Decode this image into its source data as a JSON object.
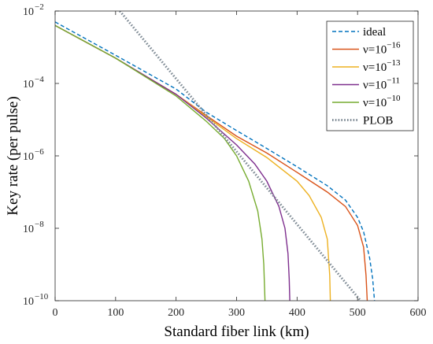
{
  "chart_data": {
    "type": "line",
    "title": "",
    "xlabel": "Standard fiber link (km)",
    "ylabel": "Key rate (per pulse)",
    "xlim": [
      0,
      600
    ],
    "ylim": [
      1e-10,
      0.01
    ],
    "yscale": "log",
    "grid": false,
    "legend_position": "top-right",
    "x_ticks": [
      0,
      100,
      200,
      300,
      400,
      500,
      600
    ],
    "y_ticks": [
      {
        "value": 1e-10,
        "base": "10",
        "exp": "−10"
      },
      {
        "value": 1e-08,
        "base": "10",
        "exp": "−8"
      },
      {
        "value": 1e-06,
        "base": "10",
        "exp": "−6"
      },
      {
        "value": 0.0001,
        "base": "10",
        "exp": "−4"
      },
      {
        "value": 0.01,
        "base": "10",
        "exp": "−2"
      }
    ],
    "series": [
      {
        "name": "ideal",
        "legend": {
          "prefix": "ideal",
          "exp": ""
        },
        "color": "#0072BD",
        "dash": "5,3",
        "x": [
          0,
          100,
          200,
          250,
          300,
          350,
          400,
          450,
          480,
          500,
          510,
          520,
          525,
          528
        ],
        "y": [
          0.005,
          0.0006,
          7e-05,
          1.6e-05,
          5e-06,
          1.6e-06,
          5e-07,
          1.5e-07,
          6e-08,
          2e-08,
          8e-09,
          1.5e-09,
          4e-10,
          1e-10
        ]
      },
      {
        "name": "ν=10^-16",
        "legend": {
          "prefix": "ν=10",
          "exp": "−16"
        },
        "color": "#D95319",
        "dash": "",
        "x": [
          0,
          100,
          200,
          250,
          300,
          350,
          400,
          450,
          480,
          500,
          510,
          514,
          516
        ],
        "y": [
          0.004,
          0.0005,
          5e-05,
          1.3e-05,
          3.5e-06,
          1.2e-06,
          3.5e-07,
          1e-07,
          4e-08,
          1.2e-08,
          3e-09,
          5e-10,
          1e-10
        ]
      },
      {
        "name": "ν=10^-13",
        "legend": {
          "prefix": "ν=10",
          "exp": "−13"
        },
        "color": "#EDB120",
        "dash": "",
        "x": [
          0,
          100,
          200,
          250,
          300,
          350,
          400,
          420,
          440,
          450,
          454,
          455
        ],
        "y": [
          0.004,
          0.0005,
          5e-05,
          1.2e-05,
          3e-06,
          9e-07,
          2e-07,
          8e-08,
          2e-08,
          5e-09,
          5e-10,
          1e-10
        ]
      },
      {
        "name": "ν=10^-11",
        "legend": {
          "prefix": "ν=10",
          "exp": "−11"
        },
        "color": "#7E2F8E",
        "dash": "",
        "x": [
          0,
          100,
          200,
          250,
          300,
          330,
          350,
          370,
          380,
          385,
          387,
          388
        ],
        "y": [
          0.004,
          0.0005,
          5e-05,
          1.1e-05,
          2e-06,
          6e-07,
          2e-07,
          4e-08,
          1e-08,
          2e-09,
          4e-10,
          1e-10
        ]
      },
      {
        "name": "ν=10^-10",
        "legend": {
          "prefix": "ν=10",
          "exp": "−10"
        },
        "color": "#77AC30",
        "dash": "",
        "x": [
          0,
          100,
          200,
          250,
          280,
          300,
          320,
          335,
          342,
          345,
          346,
          347
        ],
        "y": [
          0.004,
          0.0005,
          4.5e-05,
          9e-06,
          3e-06,
          1e-06,
          2e-07,
          3e-08,
          5e-09,
          1e-09,
          3e-10,
          1e-10
        ]
      },
      {
        "name": "PLOB",
        "legend": {
          "prefix": "PLOB",
          "exp": ""
        },
        "color": "#7F8B95",
        "dash": "1.6,2.2",
        "width": 3,
        "x": [
          107,
          505
        ],
        "y": [
          0.01,
          1e-10
        ]
      }
    ]
  }
}
